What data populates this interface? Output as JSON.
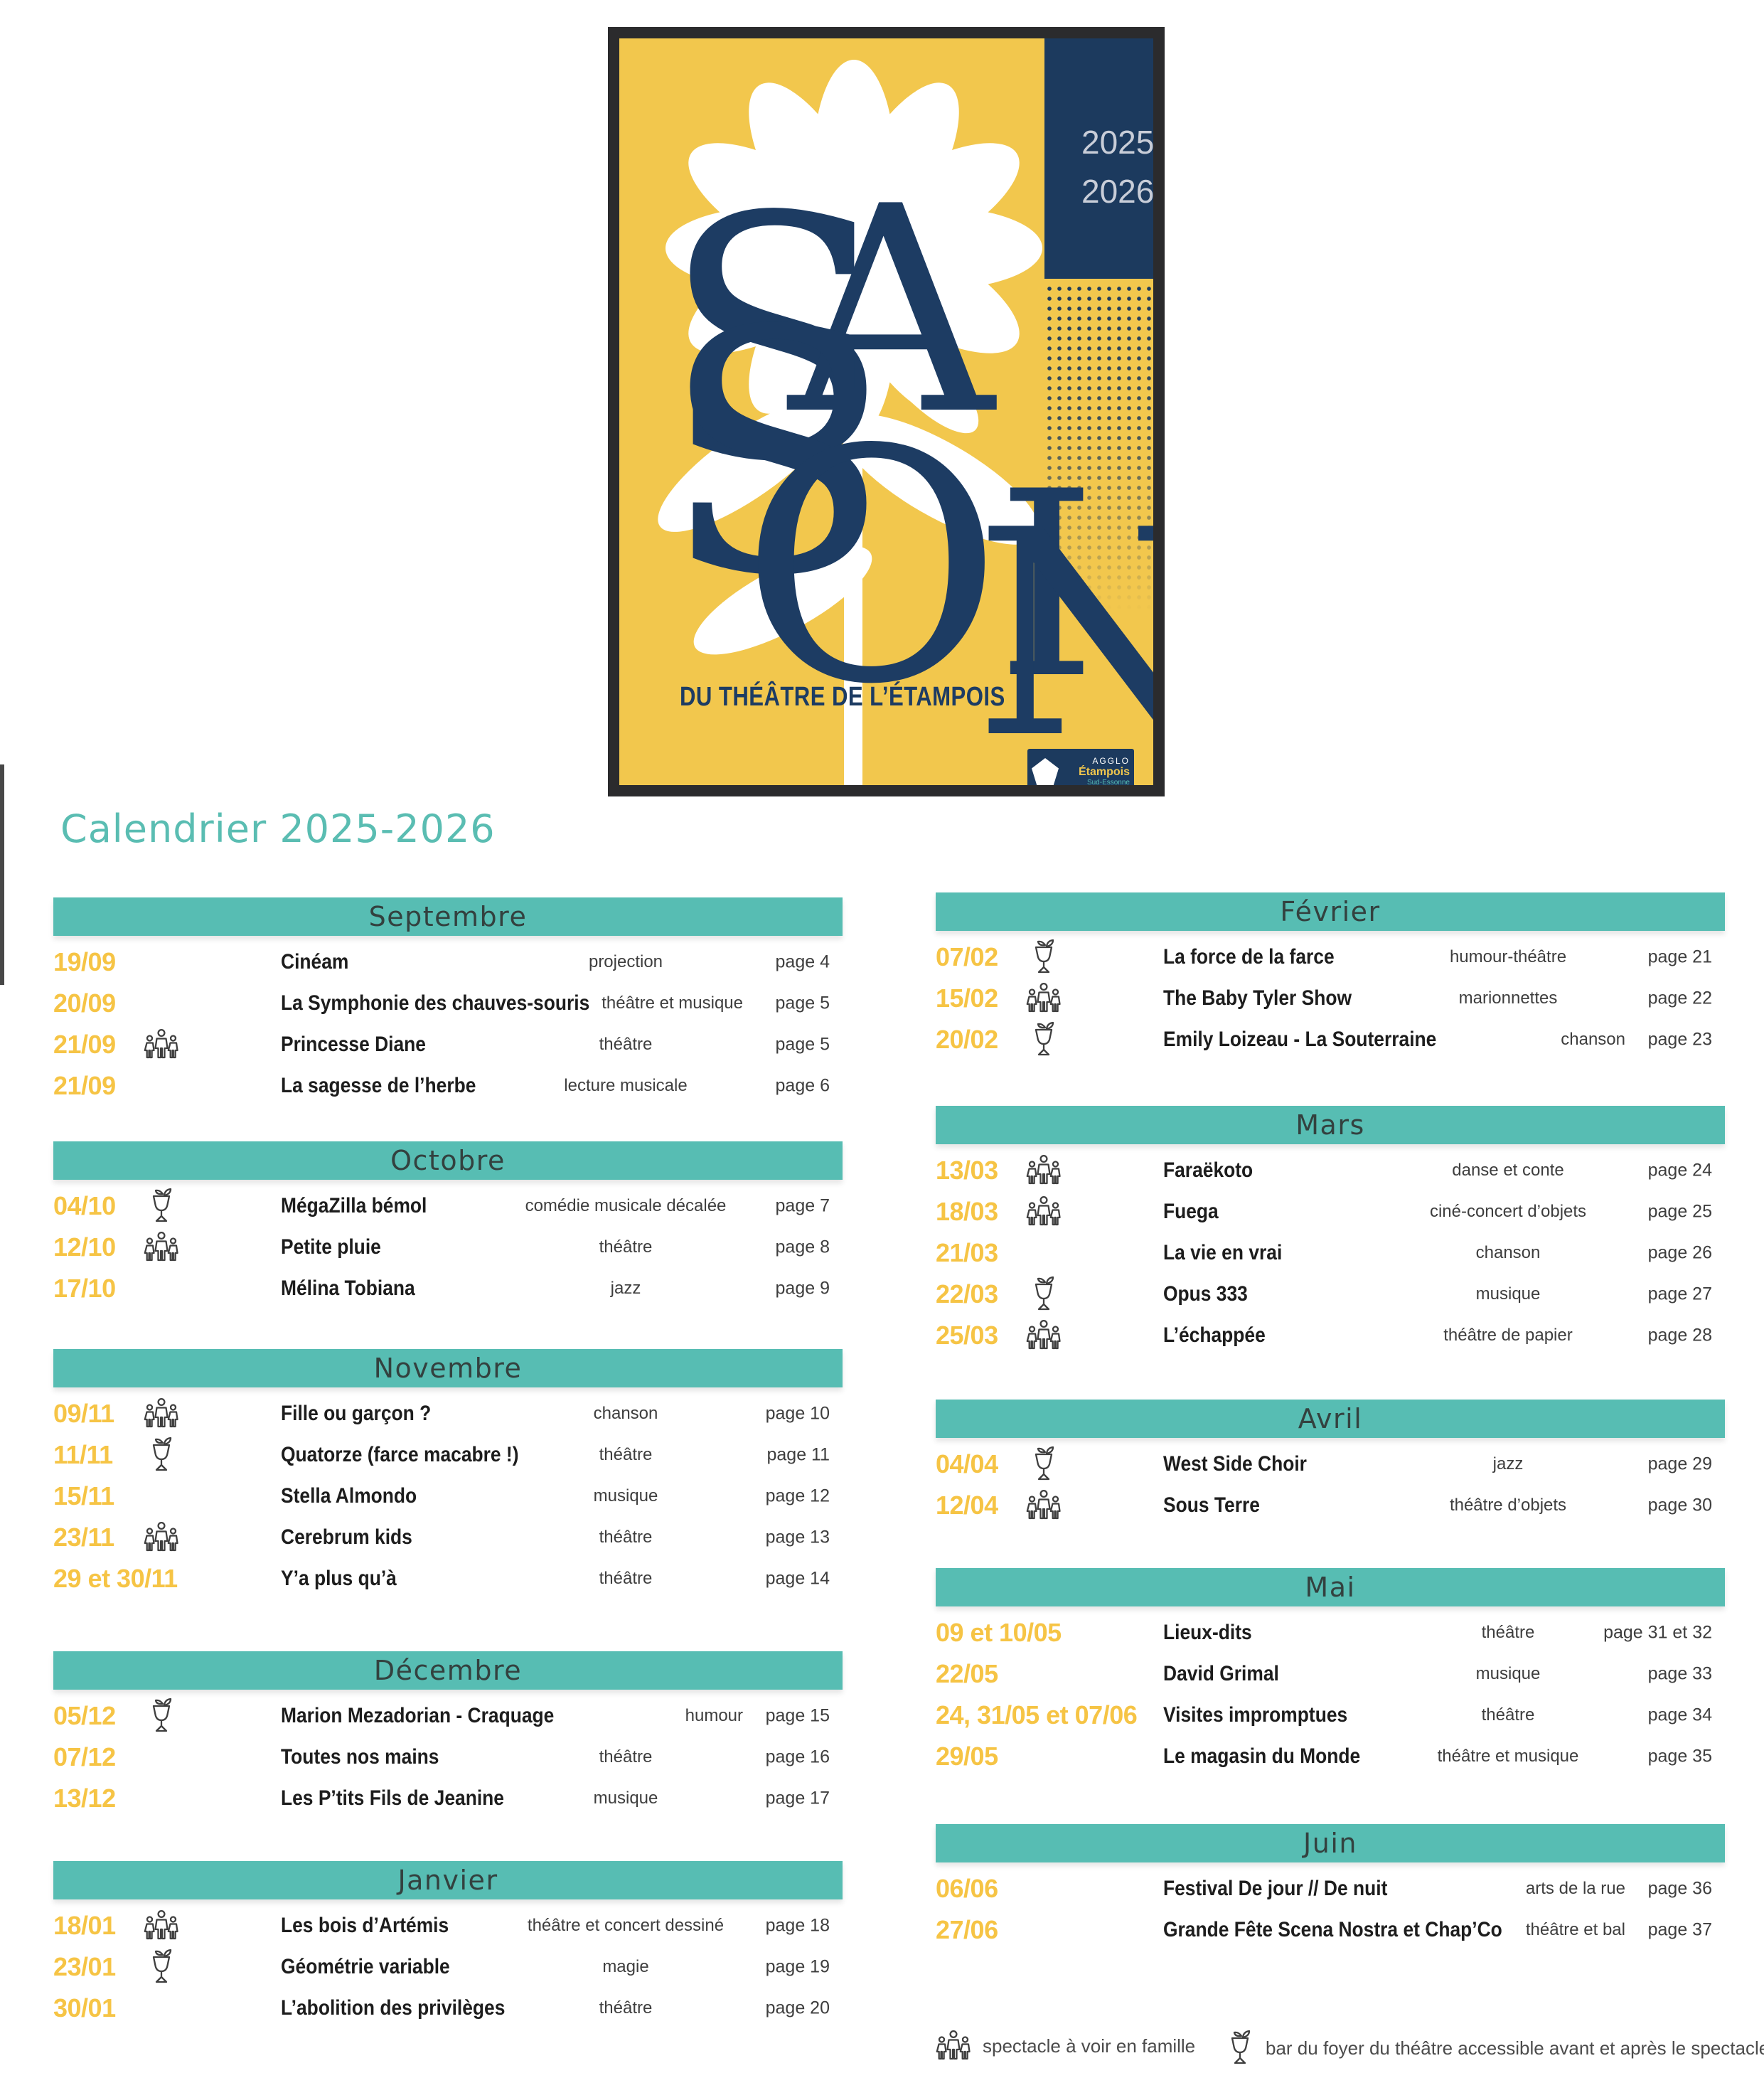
{
  "page": {
    "heading": "Calendrier 2025-2026"
  },
  "poster": {
    "letters": [
      "S",
      "A",
      "I",
      "S",
      "O",
      "N"
    ],
    "years": [
      "2025",
      "2026"
    ],
    "subtitle": "DU THÉÂTRE DE L’ÉTAMPOIS",
    "logo": {
      "line1": "AGGLO",
      "line2": "Étampois",
      "line3": "Sud-Essonne"
    }
  },
  "colors": {
    "teal": "#57bdb3",
    "date_yellow": "#f6c445",
    "poster_yellow": "#f2c74d",
    "navy": "#1c3a5e"
  },
  "calendar": {
    "columns": [
      {
        "months": [
          {
            "name": "Septembre",
            "rows": [
              {
                "date": "19/09",
                "icon": null,
                "title": "Cinéam",
                "genre": "projection",
                "page": "page 4"
              },
              {
                "date": "20/09",
                "icon": null,
                "title": "La Symphonie des chauves-souris",
                "genre": "théâtre et musique",
                "page": "page 5"
              },
              {
                "date": "21/09",
                "icon": "family",
                "title": "Princesse Diane",
                "genre": "théâtre",
                "page": "page 5"
              },
              {
                "date": "21/09",
                "icon": null,
                "title": "La sagesse de l’herbe",
                "genre": "lecture musicale",
                "page": "page 6"
              }
            ]
          },
          {
            "name": "Octobre",
            "rows": [
              {
                "date": "04/10",
                "icon": "bar",
                "title": "MégaZilla bémol",
                "genre": "comédie musicale décalée",
                "page": "page 7"
              },
              {
                "date": "12/10",
                "icon": "family",
                "title": "Petite pluie",
                "genre": "théâtre",
                "page": "page 8"
              },
              {
                "date": "17/10",
                "icon": null,
                "title": "Mélina Tobiana",
                "genre": "jazz",
                "page": "page 9"
              }
            ]
          },
          {
            "name": "Novembre",
            "rows": [
              {
                "date": "09/11",
                "icon": "family",
                "title": "Fille ou garçon ?",
                "genre": "chanson",
                "page": "page 10"
              },
              {
                "date": "11/11",
                "icon": "bar",
                "title": "Quatorze (farce macabre !)",
                "genre": "théâtre",
                "page": "page 11"
              },
              {
                "date": "15/11",
                "icon": null,
                "title": "Stella Almondo",
                "genre": "musique",
                "page": "page 12"
              },
              {
                "date": "23/11",
                "icon": "family",
                "title": "Cerebrum kids",
                "genre": "théâtre",
                "page": "page 13"
              },
              {
                "date": "29 et 30/11",
                "icon": null,
                "title": "Y’a plus qu’à",
                "genre": "théâtre",
                "page": "page 14"
              }
            ]
          },
          {
            "name": "Décembre",
            "rows": [
              {
                "date": "05/12",
                "icon": "bar",
                "title": "Marion Mezadorian - Craquage",
                "genre": "humour",
                "page": "page 15"
              },
              {
                "date": "07/12",
                "icon": null,
                "title": "Toutes nos mains",
                "genre": "théâtre",
                "page": "page 16"
              },
              {
                "date": "13/12",
                "icon": null,
                "title": "Les P’tits Fils de Jeanine",
                "genre": "musique",
                "page": "page 17"
              }
            ]
          },
          {
            "name": "Janvier",
            "rows": [
              {
                "date": "18/01",
                "icon": "family",
                "title": "Les bois d’Artémis",
                "genre": "théâtre et concert dessiné",
                "page": "page 18"
              },
              {
                "date": "23/01",
                "icon": "bar",
                "title": "Géométrie variable",
                "genre": "magie",
                "page": "page 19"
              },
              {
                "date": "30/01",
                "icon": null,
                "title": "L’abolition des privilèges",
                "genre": "théâtre",
                "page": "page 20"
              }
            ]
          }
        ]
      },
      {
        "months": [
          {
            "name": "Février",
            "rows": [
              {
                "date": "07/02",
                "icon": "bar",
                "title": "La force de la farce",
                "genre": "humour-théâtre",
                "page": "page 21"
              },
              {
                "date": "15/02",
                "icon": "family",
                "title": "The Baby Tyler Show",
                "genre": "marionnettes",
                "page": "page 22"
              },
              {
                "date": "20/02",
                "icon": "bar",
                "title": "Emily Loizeau - La Souterraine",
                "genre": "chanson",
                "page": "page 23"
              }
            ]
          },
          {
            "name": "Mars",
            "rows": [
              {
                "date": "13/03",
                "icon": "family",
                "title": "Faraëkoto",
                "genre": "danse et conte",
                "page": "page 24"
              },
              {
                "date": "18/03",
                "icon": "family",
                "title": "Fuega",
                "genre": "ciné-concert d’objets",
                "page": "page 25"
              },
              {
                "date": "21/03",
                "icon": null,
                "title": "La vie en vrai",
                "genre": "chanson",
                "page": "page 26"
              },
              {
                "date": "22/03",
                "icon": "bar",
                "title": "Opus 333",
                "genre": "musique",
                "page": "page 27"
              },
              {
                "date": "25/03",
                "icon": "family",
                "title": "L’échappée",
                "genre": "théâtre de papier",
                "page": "page 28"
              }
            ]
          },
          {
            "name": "Avril",
            "rows": [
              {
                "date": "04/04",
                "icon": "bar",
                "title": "West Side Choir",
                "genre": "jazz",
                "page": "page 29"
              },
              {
                "date": "12/04",
                "icon": "family",
                "title": "Sous Terre",
                "genre": "théâtre d’objets",
                "page": "page 30"
              }
            ]
          },
          {
            "name": "Mai",
            "rows": [
              {
                "date": "09 et 10/05",
                "icon": null,
                "title": "Lieux-dits",
                "genre": "théâtre",
                "page": "page 31 et 32"
              },
              {
                "date": "22/05",
                "icon": null,
                "title": "David Grimal",
                "genre": "musique",
                "page": "page 33"
              },
              {
                "date": "24, 31/05 et 07/06",
                "icon": null,
                "title": "Visites impromptues",
                "genre": "théâtre",
                "page": "page 34"
              },
              {
                "date": "29/05",
                "icon": null,
                "title": "Le magasin du Monde",
                "genre": "théâtre et musique",
                "page": "page 35"
              }
            ]
          },
          {
            "name": "Juin",
            "rows": [
              {
                "date": "06/06",
                "icon": null,
                "title": "Festival De jour // De nuit",
                "genre": "arts de la rue",
                "page": "page 36"
              },
              {
                "date": "27/06",
                "icon": null,
                "title": "Grande Fête Scena Nostra et Chap’Co",
                "genre": "théâtre et bal",
                "page": "page 37"
              }
            ]
          }
        ]
      }
    ],
    "legend": [
      {
        "icon": "family",
        "label": "spectacle à voir en famille"
      },
      {
        "icon": "bar",
        "label": "bar du foyer du théâtre accessible avant et après le spectacle"
      }
    ]
  }
}
